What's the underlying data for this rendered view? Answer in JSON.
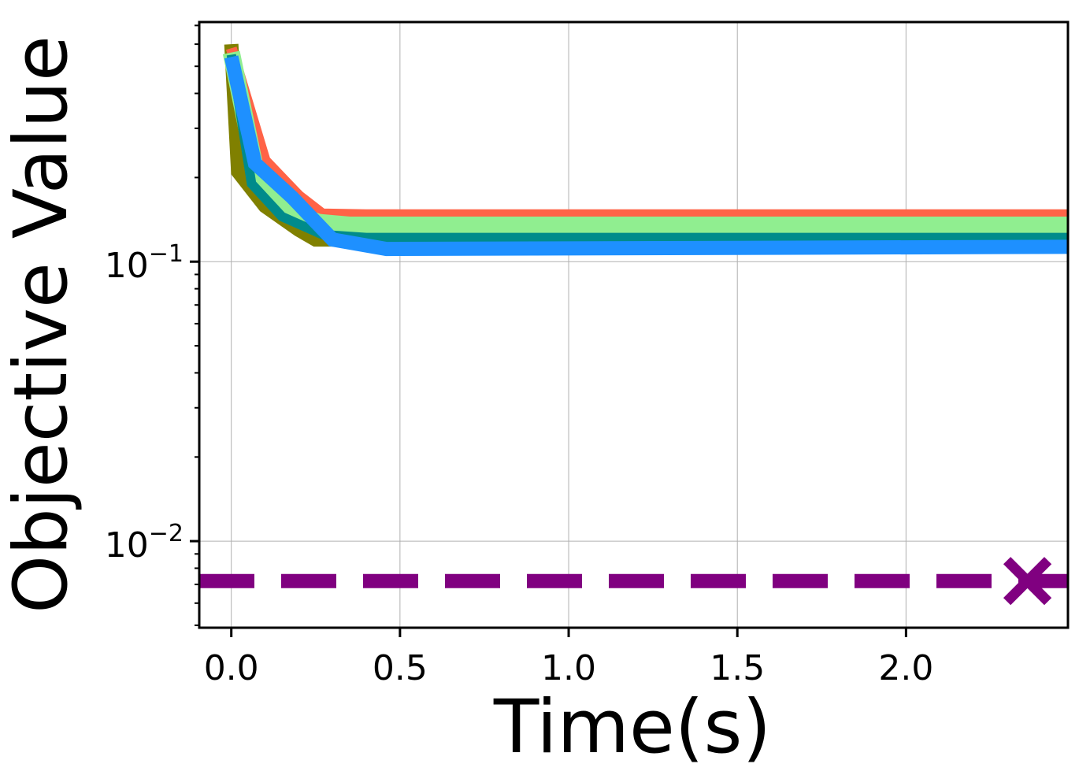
{
  "chart_data": {
    "type": "line",
    "title": "",
    "xlabel": "Time(s)",
    "ylabel": "Objective Value",
    "xscale": "linear",
    "yscale": "log",
    "xlim": [
      -0.095,
      2.48
    ],
    "ylim": [
      0.0049,
      0.72
    ],
    "xticks": [
      {
        "value": 0.0,
        "label": "0.0"
      },
      {
        "value": 0.5,
        "label": "0.5"
      },
      {
        "value": 1.0,
        "label": "1.0"
      },
      {
        "value": 1.5,
        "label": "1.5"
      },
      {
        "value": 2.0,
        "label": "2.0"
      }
    ],
    "yticks": [
      {
        "value": 0.1,
        "base": "10",
        "exp": "−1"
      },
      {
        "value": 0.01,
        "base": "10",
        "exp": "−2"
      }
    ],
    "grid": true,
    "legend": "none",
    "series": [
      {
        "color": "#808000",
        "width": 18,
        "dash": "",
        "x": [
          0.0,
          0.02,
          0.1,
          0.2,
          0.25,
          2.48
        ],
        "y": [
          0.6,
          0.21,
          0.158,
          0.13,
          0.12,
          0.12
        ]
      },
      {
        "color": "#FF6347",
        "width": 14,
        "dash": "",
        "x": [
          0.0,
          0.1,
          0.2,
          0.27,
          0.4,
          2.48
        ],
        "y": [
          0.58,
          0.23,
          0.172,
          0.148,
          0.147,
          0.147
        ]
      },
      {
        "color": "#90EE90",
        "width": 22,
        "dash": "",
        "x": [
          0.0,
          0.08,
          0.16,
          0.26,
          0.35,
          0.5,
          2.48
        ],
        "y": [
          0.56,
          0.19,
          0.152,
          0.138,
          0.135,
          0.135,
          0.135
        ]
      },
      {
        "color": "#008B8B",
        "width": 12,
        "dash": "",
        "x": [
          0.0,
          0.06,
          0.15,
          0.27,
          0.4,
          2.48
        ],
        "y": [
          0.55,
          0.19,
          0.145,
          0.125,
          0.122,
          0.122
        ]
      },
      {
        "color": "#1E90FF",
        "width": 18,
        "dash": "",
        "x": [
          0.0,
          0.07,
          0.18,
          0.3,
          0.46,
          2.48
        ],
        "y": [
          0.54,
          0.225,
          0.17,
          0.12,
          0.111,
          0.113
        ]
      },
      {
        "color": "#800080",
        "width": 18,
        "dash": "70,34",
        "x": [
          -0.095,
          2.48
        ],
        "y": [
          0.0072,
          0.0072
        ],
        "marker": {
          "x": 2.36,
          "y": 0.0072,
          "symbol": "x"
        }
      }
    ]
  }
}
